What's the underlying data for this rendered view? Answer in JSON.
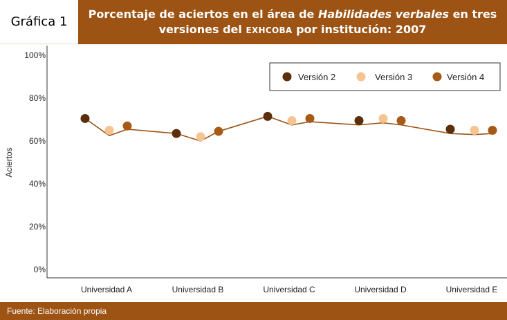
{
  "figure_label": "Gráfica 1",
  "title": {
    "line1_pre": "Porcentaje de aciertos en el área de ",
    "line1_italic": "Habilidades verbales",
    "line1_post": " en tres",
    "line2_pre": "versiones del ",
    "line2_sc": "EXHCOBA",
    "line2_post": " por institución: 2007"
  },
  "footer": "Fuente: Elaboración propia",
  "colors": {
    "header": "#9c5314",
    "v2": "#5c2f0c",
    "v3": "#f6c491",
    "v4": "#a65a16",
    "line": "#9c5314"
  },
  "chart_data": {
    "type": "scatter",
    "ylabel": "Aciertos",
    "ylim": [
      0,
      100
    ],
    "yticks": [
      "0%",
      "20%",
      "40%",
      "60%",
      "80%",
      "100%"
    ],
    "categories": [
      "Universidad A",
      "Universidad B",
      "Universidad C",
      "Universidad D",
      "Universidad E"
    ],
    "series": [
      {
        "name": "Versión 2",
        "values": [
          70.5,
          63.5,
          71.5,
          69.5,
          65.5
        ]
      },
      {
        "name": "Versión 3",
        "values": [
          65.0,
          62.0,
          69.5,
          70.5,
          65.0
        ]
      },
      {
        "name": "Versión 4",
        "values": [
          67.0,
          64.5,
          70.5,
          69.5,
          65.0
        ]
      }
    ],
    "trend_line": [
      70.5,
      62.5,
      65.5,
      63.5,
      60.0,
      64.5,
      71.5,
      67.5,
      69.0,
      67.5,
      68.5,
      67.5,
      63.5,
      63.0,
      63.5
    ],
    "legend_position": "top-right",
    "grid": false
  }
}
